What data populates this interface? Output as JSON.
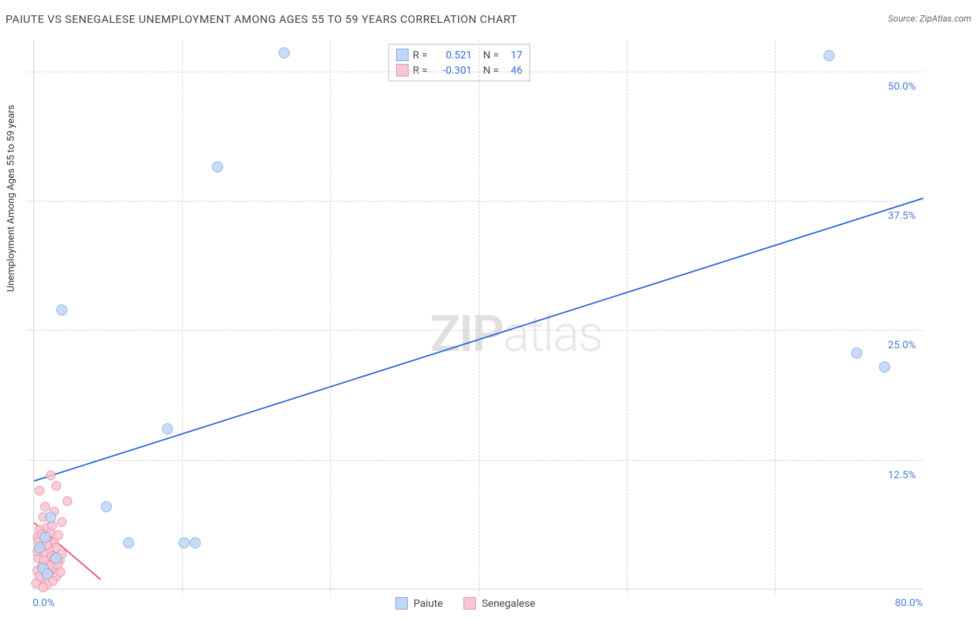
{
  "header": {
    "title": "PAIUTE VS SENEGALESE UNEMPLOYMENT AMONG AGES 55 TO 59 YEARS CORRELATION CHART",
    "source": "Source: ZipAtlas.com"
  },
  "chart": {
    "type": "scatter",
    "ylabel": "Unemployment Among Ages 55 to 59 years",
    "xlim": [
      0,
      80
    ],
    "ylim": [
      0,
      53
    ],
    "xticks": [
      0,
      80
    ],
    "xtick_labels": [
      "0.0%",
      "80.0%"
    ],
    "xtick_minors": [
      13.3,
      26.6,
      40,
      53.3,
      66.6
    ],
    "yticks": [
      12.5,
      25,
      37.5,
      50
    ],
    "ytick_labels": [
      "12.5%",
      "25.0%",
      "37.5%",
      "50.0%"
    ],
    "background_color": "#ffffff",
    "grid_color": "#d0d0d0",
    "axis_label_color": "#4a7bd8",
    "series": [
      {
        "name": "Paiute",
        "color_fill": "#bfd6f6",
        "color_stroke": "#7ba8e0",
        "marker_size": 16,
        "r_value": "0.521",
        "n_value": "17",
        "trend": {
          "x1": 0,
          "y1": 10.5,
          "x2": 80,
          "y2": 37.8,
          "color": "#2d68d8",
          "width": 2
        },
        "points": [
          [
            22.5,
            51.8
          ],
          [
            71.5,
            51.5
          ],
          [
            16.5,
            40.8
          ],
          [
            2.5,
            27.0
          ],
          [
            74.0,
            22.8
          ],
          [
            76.5,
            21.5
          ],
          [
            12.0,
            15.5
          ],
          [
            6.5,
            8.0
          ],
          [
            1.5,
            7.0
          ],
          [
            8.5,
            4.5
          ],
          [
            13.5,
            4.5
          ],
          [
            14.5,
            4.5
          ],
          [
            1.0,
            5.0
          ],
          [
            0.5,
            4.0
          ],
          [
            2.0,
            3.0
          ],
          [
            0.8,
            2.0
          ],
          [
            1.2,
            1.5
          ]
        ]
      },
      {
        "name": "Senegalese",
        "color_fill": "#f8c6d2",
        "color_stroke": "#e88ba3",
        "marker_size": 14,
        "r_value": "-0.301",
        "n_value": "46",
        "trend": {
          "x1": 0,
          "y1": 6.5,
          "x2": 6,
          "y2": 1.0,
          "color": "#e8526e",
          "width": 2
        },
        "points": [
          [
            1.5,
            11.0
          ],
          [
            2.0,
            10.0
          ],
          [
            0.5,
            9.5
          ],
          [
            3.0,
            8.5
          ],
          [
            1.0,
            8.0
          ],
          [
            1.8,
            7.5
          ],
          [
            0.8,
            7.0
          ],
          [
            2.5,
            6.5
          ],
          [
            1.2,
            6.0
          ],
          [
            0.5,
            5.8
          ],
          [
            1.5,
            5.5
          ],
          [
            2.2,
            5.2
          ],
          [
            0.3,
            5.0
          ],
          [
            1.0,
            4.8
          ],
          [
            1.8,
            4.5
          ],
          [
            0.6,
            4.2
          ],
          [
            2.0,
            4.0
          ],
          [
            1.3,
            3.8
          ],
          [
            0.8,
            3.5
          ],
          [
            1.6,
            3.2
          ],
          [
            0.4,
            3.0
          ],
          [
            2.3,
            2.8
          ],
          [
            1.1,
            2.5
          ],
          [
            0.7,
            2.2
          ],
          [
            1.9,
            2.0
          ],
          [
            0.3,
            1.8
          ],
          [
            1.4,
            1.5
          ],
          [
            2.0,
            1.2
          ],
          [
            0.6,
            1.0
          ],
          [
            1.7,
            0.8
          ],
          [
            0.2,
            0.6
          ],
          [
            0.9,
            2.8
          ],
          [
            1.5,
            2.3
          ],
          [
            2.4,
            1.7
          ],
          [
            0.5,
            1.3
          ],
          [
            1.2,
            4.3
          ],
          [
            1.8,
            3.0
          ],
          [
            0.4,
            4.6
          ],
          [
            2.1,
            2.4
          ],
          [
            1.0,
            1.9
          ],
          [
            0.7,
            5.3
          ],
          [
            1.6,
            6.2
          ],
          [
            0.3,
            3.7
          ],
          [
            2.5,
            3.4
          ],
          [
            1.1,
            0.4
          ],
          [
            0.8,
            0.2
          ]
        ]
      }
    ],
    "legend_top": {
      "r_label": "R =",
      "n_label": "N ="
    },
    "legend_bottom": [
      {
        "label": "Paiute",
        "fill": "#bfd6f6",
        "stroke": "#7ba8e0"
      },
      {
        "label": "Senegalese",
        "fill": "#f8c6d2",
        "stroke": "#e88ba3"
      }
    ],
    "watermark": {
      "part1": "ZIP",
      "part2": "atlas"
    }
  }
}
